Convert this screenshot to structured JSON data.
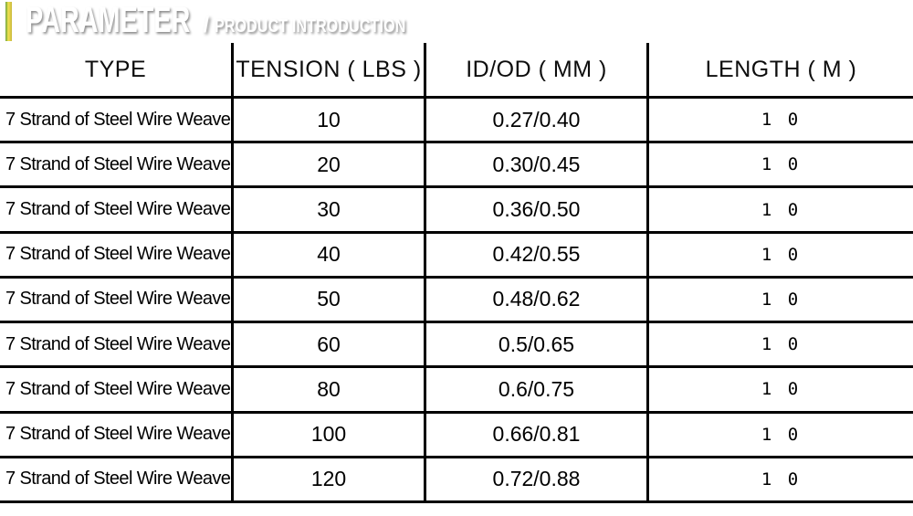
{
  "banner": {
    "title": "PARAMETER",
    "separator": "/",
    "subtitle": "PRODUCT INTRODUCTION"
  },
  "colors": {
    "banner_bright_blue": "#2fa4de",
    "banner_dark_blue": "#15679d",
    "stripe_yellow": "#f2e24f",
    "stripe_green": "#6aa33c",
    "grid_line": "#000000",
    "text": "#000000"
  },
  "table": {
    "columns": [
      {
        "key": "type",
        "label": "TYPE"
      },
      {
        "key": "tension",
        "label": "TENSION ( LBS )"
      },
      {
        "key": "idod",
        "label": "ID/OD ( MM )"
      },
      {
        "key": "length",
        "label": "LENGTH ( M )"
      }
    ],
    "rows": [
      {
        "type": "7 Strand of Steel Wire Weave",
        "tension": "10",
        "idod": "0.27/0.40",
        "length": "1 0"
      },
      {
        "type": "7 Strand of Steel Wire Weave",
        "tension": "20",
        "idod": "0.30/0.45",
        "length": "1 0"
      },
      {
        "type": "7 Strand of Steel Wire Weave",
        "tension": "30",
        "idod": "0.36/0.50",
        "length": "1 0"
      },
      {
        "type": "7 Strand of Steel Wire Weave",
        "tension": "40",
        "idod": "0.42/0.55",
        "length": "1 0"
      },
      {
        "type": "7 Strand of Steel Wire Weave",
        "tension": "50",
        "idod": "0.48/0.62",
        "length": "1 0"
      },
      {
        "type": "7 Strand of Steel Wire Weave",
        "tension": "60",
        "idod": "0.5/0.65",
        "length": "1 0"
      },
      {
        "type": "7 Strand of Steel Wire Weave",
        "tension": "80",
        "idod": "0.6/0.75",
        "length": "1 0"
      },
      {
        "type": "7 Strand of Steel Wire Weave",
        "tension": "100",
        "idod": "0.66/0.81",
        "length": "1 0"
      },
      {
        "type": "7 Strand of Steel Wire Weave",
        "tension": "120",
        "idod": "0.72/0.88",
        "length": "1 0"
      }
    ]
  }
}
